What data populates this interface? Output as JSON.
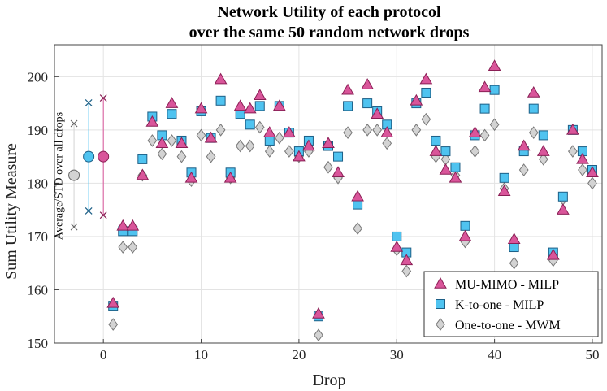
{
  "chart_data": {
    "type": "scatter",
    "title": [
      "Network Utility of each protocol",
      "over the same 50 random network drops"
    ],
    "xlabel": "Drop",
    "ylabel": "Sum Utility Measure",
    "xlim": [
      -5,
      51
    ],
    "ylim": [
      150,
      206
    ],
    "xticks": [
      0,
      10,
      20,
      30,
      40,
      50
    ],
    "yticks": [
      150,
      160,
      170,
      180,
      190,
      200
    ],
    "grid": true,
    "legend_position": "bottom-right",
    "annotation": "Average/STD over all drops",
    "colors": {
      "mu_mimo": "#d9559a",
      "k_to_one": "#4fc3f0",
      "one_to_one": "#d3d3d3"
    },
    "summary": [
      {
        "series": "One-to-one - MWM",
        "x": -3,
        "mean": 181.5,
        "min": 171.8,
        "max": 191.2
      },
      {
        "series": "K-to-one - MILP",
        "x": -1.5,
        "mean": 185.0,
        "min": 174.8,
        "max": 195.1
      },
      {
        "series": "MU-MIMO - MILP",
        "x": 0,
        "mean": 185.0,
        "min": 174.0,
        "max": 196.0
      }
    ],
    "series": [
      {
        "name": "MU-MIMO - MILP",
        "marker": "triangle",
        "x": [
          1,
          2,
          3,
          4,
          5,
          6,
          7,
          8,
          9,
          10,
          11,
          12,
          13,
          14,
          15,
          16,
          17,
          18,
          19,
          20,
          21,
          22,
          23,
          24,
          25,
          26,
          27,
          28,
          29,
          30,
          31,
          32,
          33,
          34,
          35,
          36,
          37,
          38,
          39,
          40,
          41,
          42,
          43,
          44,
          45,
          46,
          47,
          48,
          49,
          50
        ],
        "y": [
          157.5,
          172,
          172,
          181.5,
          191.5,
          187.5,
          195,
          187.5,
          181,
          194,
          188.5,
          199.5,
          181,
          194.5,
          194,
          196.5,
          189.5,
          194.5,
          189.5,
          185,
          187,
          155.5,
          187.5,
          182,
          197.5,
          177.5,
          198.5,
          193,
          189.5,
          168,
          165.5,
          195.5,
          199.5,
          186,
          182.5,
          181,
          170,
          189.5,
          198,
          202,
          178.5,
          169.5,
          187,
          197,
          186,
          166.5,
          175,
          190,
          184.5,
          182
        ]
      },
      {
        "name": "K-to-one - MILP",
        "marker": "square",
        "x": [
          1,
          2,
          3,
          4,
          5,
          6,
          7,
          8,
          9,
          10,
          11,
          12,
          13,
          14,
          15,
          16,
          17,
          18,
          19,
          20,
          21,
          22,
          23,
          24,
          25,
          26,
          27,
          28,
          29,
          30,
          31,
          32,
          33,
          34,
          35,
          36,
          37,
          38,
          39,
          40,
          41,
          42,
          43,
          44,
          45,
          46,
          47,
          48,
          49,
          50
        ],
        "y": [
          157,
          171,
          171,
          184.5,
          192.5,
          189,
          193,
          188,
          182,
          193.5,
          188.5,
          195.5,
          182,
          193,
          191,
          194.5,
          188,
          194.5,
          189.5,
          186,
          188,
          155,
          187,
          185,
          194.5,
          176,
          195,
          193.5,
          191,
          170,
          167,
          195,
          197,
          188,
          186,
          183,
          172,
          189,
          194,
          197.5,
          181,
          168,
          186,
          194,
          189,
          167,
          177.5,
          190,
          186,
          182.5
        ]
      },
      {
        "name": "One-to-one - MWM",
        "marker": "diamond",
        "x": [
          1,
          2,
          3,
          4,
          5,
          6,
          7,
          8,
          9,
          10,
          11,
          12,
          13,
          14,
          15,
          16,
          17,
          18,
          19,
          20,
          21,
          22,
          23,
          24,
          25,
          26,
          27,
          28,
          29,
          30,
          31,
          32,
          33,
          34,
          35,
          36,
          37,
          38,
          39,
          40,
          41,
          42,
          43,
          44,
          45,
          46,
          47,
          48,
          49,
          50
        ],
        "y": [
          153.5,
          168,
          168,
          181.5,
          188,
          185.5,
          188,
          185,
          180.5,
          189,
          185,
          190,
          181,
          187,
          187,
          190.5,
          186,
          188.5,
          186,
          185,
          186,
          151.5,
          183,
          181,
          189.5,
          171.5,
          190,
          190,
          187.5,
          167.5,
          163.5,
          190,
          192,
          185,
          184.5,
          181.5,
          169,
          186,
          189,
          191,
          179,
          165,
          182.5,
          189.5,
          184.5,
          165.5,
          177,
          186,
          182.5,
          180
        ]
      }
    ]
  }
}
